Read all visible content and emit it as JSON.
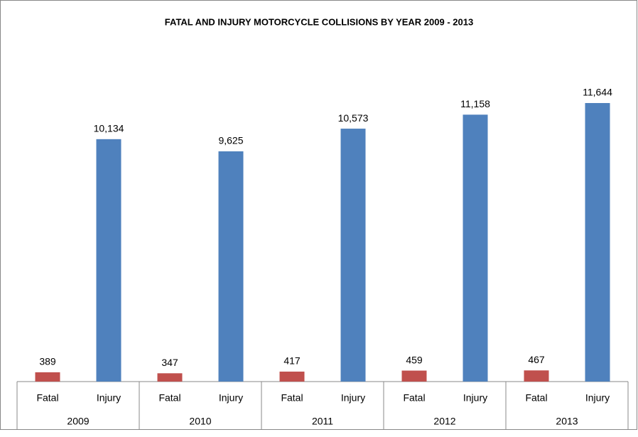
{
  "chart_data": {
    "type": "bar",
    "title": "FATAL AND INJURY MOTORCYCLE COLLISIONS BY YEAR  2009 - 2013",
    "categories": [
      "2009",
      "2010",
      "2011",
      "2012",
      "2013"
    ],
    "series": [
      {
        "name": "Fatal",
        "color": "#c0504d",
        "values": [
          389,
          347,
          417,
          459,
          467
        ],
        "value_labels": [
          "389",
          "347",
          "417",
          "459",
          "467"
        ]
      },
      {
        "name": "Injury",
        "color": "#4f81bd",
        "values": [
          10134,
          9625,
          10573,
          11158,
          11644
        ],
        "value_labels": [
          "10,134",
          "9,625",
          "10,573",
          "11,158",
          "11,644"
        ]
      }
    ]
  }
}
